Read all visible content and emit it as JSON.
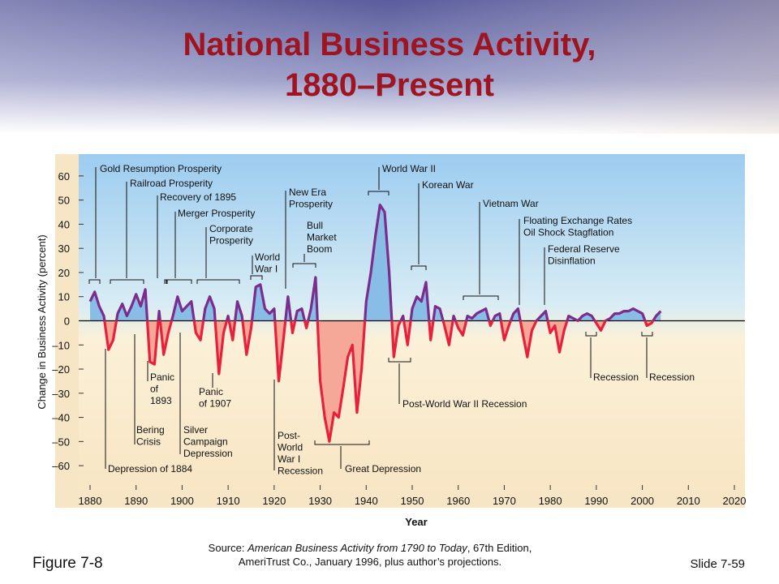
{
  "chart_data": {
    "type": "line",
    "title_lines": [
      "National Business Activity,",
      "1880–Present"
    ],
    "ylabel": "Change in Business Activity (percent)",
    "xlabel": "Year",
    "xlim": [
      1880,
      2020
    ],
    "xticks": [
      1880,
      1890,
      1900,
      1910,
      1920,
      1930,
      1940,
      1950,
      1960,
      1970,
      1980,
      1990,
      2000,
      2010,
      2020
    ],
    "ylim": [
      -65,
      65
    ],
    "yticks": [
      {
        "value": -60,
        "label": "–60"
      },
      {
        "value": -50,
        "label": "–50"
      },
      {
        "value": -40,
        "label": "–40"
      },
      {
        "value": -30,
        "label": "–30"
      },
      {
        "value": -20,
        "label": "–20"
      },
      {
        "value": -10,
        "label": "–10"
      },
      0,
      10,
      20,
      30,
      40,
      50,
      60
    ],
    "series": [
      {
        "name": "Business Activity",
        "color": "#7b2d8e",
        "negative_color": "#e8203a",
        "fill_color": "#88bde8",
        "negative_fill_color": "#f6a898",
        "x": [
          1880,
          1881,
          1882,
          1883,
          1884,
          1885,
          1886,
          1887,
          1888,
          1889,
          1890,
          1891,
          1892,
          1893,
          1894,
          1895,
          1896,
          1897,
          1898,
          1899,
          1900,
          1901,
          1902,
          1903,
          1904,
          1905,
          1906,
          1907,
          1908,
          1909,
          1910,
          1911,
          1912,
          1913,
          1914,
          1915,
          1916,
          1917,
          1918,
          1919,
          1920,
          1921,
          1922,
          1923,
          1924,
          1925,
          1926,
          1927,
          1928,
          1929,
          1930,
          1931,
          1932,
          1933,
          1934,
          1935,
          1936,
          1937,
          1938,
          1939,
          1940,
          1941,
          1942,
          1943,
          1944,
          1945,
          1946,
          1947,
          1948,
          1949,
          1950,
          1951,
          1952,
          1953,
          1954,
          1955,
          1956,
          1957,
          1958,
          1959,
          1960,
          1961,
          1962,
          1963,
          1964,
          1965,
          1966,
          1967,
          1968,
          1969,
          1970,
          1971,
          1972,
          1973,
          1974,
          1975,
          1976,
          1977,
          1978,
          1979,
          1980,
          1981,
          1982,
          1983,
          1984,
          1985,
          1986,
          1987,
          1988,
          1989,
          1990,
          1991,
          1992,
          1993,
          1994,
          1995,
          1996,
          1997,
          1998,
          1999,
          2000,
          2001,
          2002,
          2003,
          2004
        ],
        "values": [
          8,
          12,
          6,
          2,
          -12,
          -8,
          3,
          7,
          2,
          6,
          11,
          6,
          13,
          -17,
          -18,
          4,
          -14,
          -5,
          2,
          10,
          4,
          6,
          8,
          -5,
          -8,
          5,
          10,
          5,
          -22,
          -5,
          2,
          -8,
          8,
          2,
          -14,
          -3,
          14,
          15,
          5,
          3,
          5,
          -25,
          -8,
          10,
          -5,
          4,
          5,
          -3,
          5,
          18,
          -25,
          -40,
          -50,
          -38,
          -40,
          -28,
          -15,
          -10,
          -38,
          -20,
          8,
          20,
          35,
          48,
          45,
          20,
          -15,
          -2,
          2,
          -10,
          5,
          10,
          8,
          16,
          -8,
          6,
          5,
          -2,
          -10,
          2,
          -3,
          -6,
          2,
          1,
          3,
          4,
          5,
          -2,
          2,
          3,
          -8,
          -2,
          3,
          5,
          -5,
          -15,
          -4,
          0,
          2,
          4,
          -5,
          -2,
          -13,
          -4,
          2,
          1,
          0,
          2,
          3,
          2,
          -1,
          -4,
          0,
          1,
          3,
          3,
          4,
          4,
          5,
          4,
          3,
          -2,
          -1,
          2,
          4
        ]
      }
    ],
    "annotations": [
      {
        "lines": [
          "Gold Resumption Prosperity"
        ]
      },
      {
        "lines": [
          "Railroad Prosperity"
        ]
      },
      {
        "lines": [
          "Recovery of 1895"
        ]
      },
      {
        "lines": [
          "Merger Prosperity"
        ]
      },
      {
        "lines": [
          "Corporate",
          "Prosperity"
        ]
      },
      {
        "lines": [
          "World",
          "War I"
        ]
      },
      {
        "lines": [
          "New Era",
          "Prosperity"
        ]
      },
      {
        "lines": [
          "Bull",
          "Market",
          "Boom"
        ]
      },
      {
        "lines": [
          "World War II"
        ]
      },
      {
        "lines": [
          "Korean War"
        ]
      },
      {
        "lines": [
          "Vietnam War"
        ]
      },
      {
        "lines": [
          "Floating Exchange Rates",
          "Oil Shock Stagflation"
        ]
      },
      {
        "lines": [
          "Federal Reserve",
          "Disinflation"
        ]
      },
      {
        "lines": [
          "Panic",
          "of",
          "1893"
        ]
      },
      {
        "lines": [
          "Panic",
          "of 1907"
        ]
      },
      {
        "lines": [
          "Bering",
          "Crisis"
        ]
      },
      {
        "lines": [
          "Silver",
          "Campaign",
          "Depression"
        ]
      },
      {
        "lines": [
          "Depression of 1884"
        ]
      },
      {
        "lines": [
          "Post-",
          "World",
          "War I",
          "Recession"
        ]
      },
      {
        "lines": [
          "Great Depression"
        ]
      },
      {
        "lines": [
          "Post-World War II Recession"
        ]
      },
      {
        "lines": [
          "Recession"
        ]
      },
      {
        "lines": [
          "Recession"
        ]
      }
    ]
  },
  "footer": {
    "figure": "Figure 7-8",
    "source_prefix": "Source: ",
    "source_title": "American Business Activity from 1790 to Today",
    "source_rest": ", 67th Edition,",
    "source_line2": "AmeriTrust Co., January 1996, plus author’s projections.",
    "slide": "Slide 7-59"
  }
}
